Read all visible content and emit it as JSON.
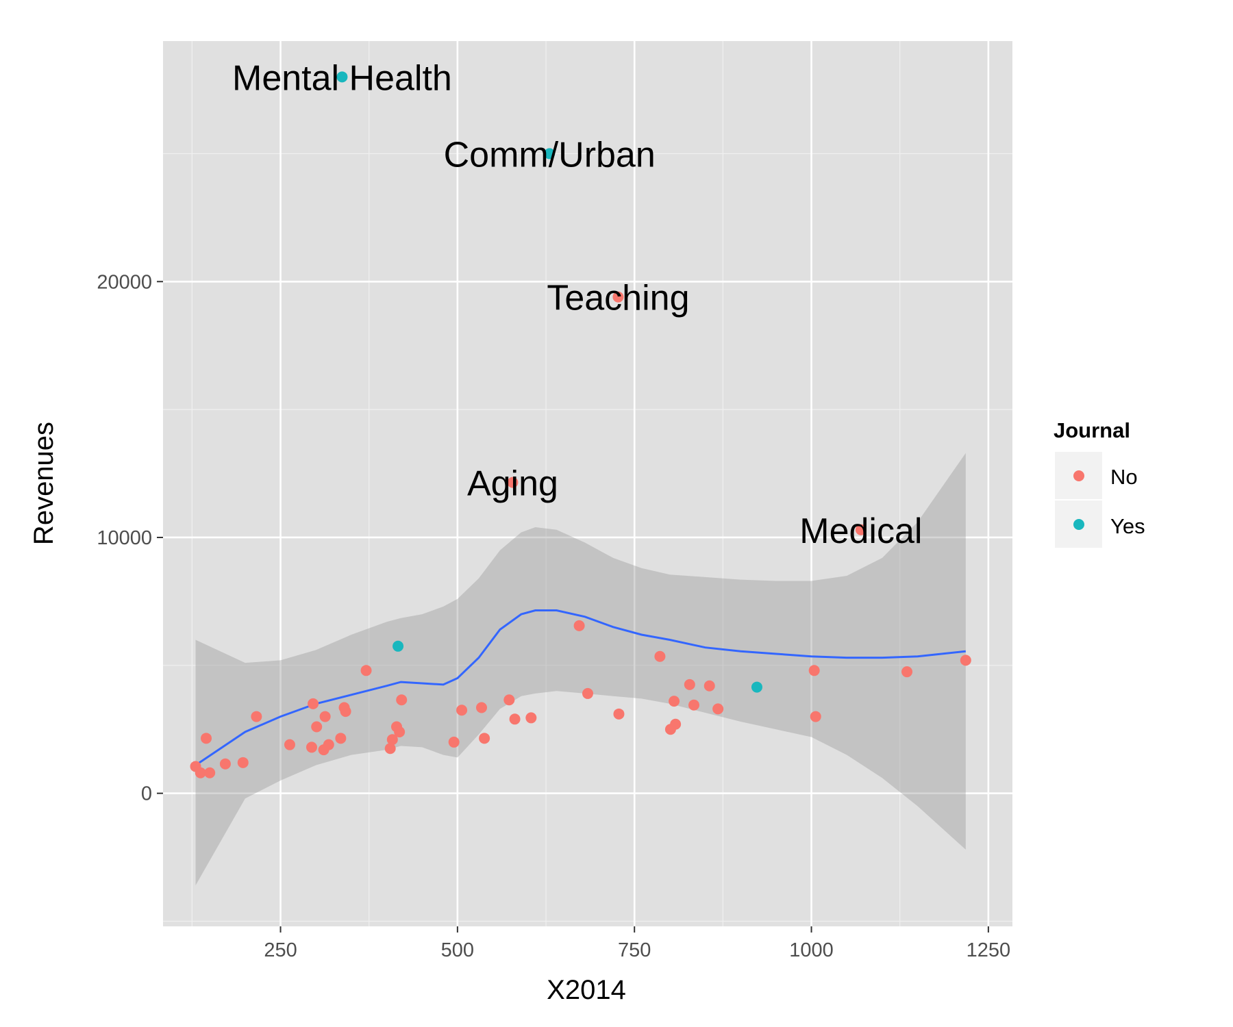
{
  "chart_data": {
    "type": "scatter",
    "xlabel": "X2014",
    "ylabel": "Revenues",
    "xlim": [
      84,
      1284
    ],
    "ylim": [
      -5200,
      29400
    ],
    "x_ticks": [
      250,
      500,
      750,
      1000,
      1250
    ],
    "x_tick_labels": [
      "250",
      "500",
      "750",
      "1000",
      "1250"
    ],
    "y_ticks": [
      0,
      10000,
      20000
    ],
    "y_tick_labels": [
      "0",
      "10000",
      "20000"
    ],
    "grid": true,
    "background_color": "#e0e0e0",
    "grid_color": "#ffffff",
    "legend": {
      "title": "Journal",
      "position": "right",
      "entries": [
        {
          "label": "No",
          "color": "#f8766d"
        },
        {
          "label": "Yes",
          "color": "#19b7be"
        }
      ]
    },
    "series": [
      {
        "name": "No",
        "color": "#f8766d",
        "points": [
          [
            130,
            1050
          ],
          [
            137,
            800
          ],
          [
            145,
            2150
          ],
          [
            150,
            800
          ],
          [
            172,
            1150
          ],
          [
            197,
            1200
          ],
          [
            216,
            3000
          ],
          [
            263,
            1900
          ],
          [
            294,
            1800
          ],
          [
            296,
            3500
          ],
          [
            301,
            2600
          ],
          [
            311,
            1700
          ],
          [
            313,
            3000
          ],
          [
            318,
            1900
          ],
          [
            335,
            2150
          ],
          [
            340,
            3350
          ],
          [
            342,
            3200
          ],
          [
            371,
            4800
          ],
          [
            405,
            1750
          ],
          [
            408,
            2100
          ],
          [
            414,
            2600
          ],
          [
            418,
            2400
          ],
          [
            421,
            3650
          ],
          [
            495,
            2000
          ],
          [
            506,
            3250
          ],
          [
            534,
            3350
          ],
          [
            538,
            2150
          ],
          [
            573,
            3650
          ],
          [
            578,
            12150
          ],
          [
            581,
            2900
          ],
          [
            604,
            2950
          ],
          [
            672,
            6550
          ],
          [
            684,
            3900
          ],
          [
            727,
            19400
          ],
          [
            728,
            3100
          ],
          [
            786,
            5350
          ],
          [
            801,
            2500
          ],
          [
            806,
            3600
          ],
          [
            808,
            2700
          ],
          [
            828,
            4250
          ],
          [
            834,
            3450
          ],
          [
            856,
            4200
          ],
          [
            868,
            3300
          ],
          [
            1004,
            4800
          ],
          [
            1006,
            3000
          ],
          [
            1070,
            10300
          ],
          [
            1135,
            4750
          ],
          [
            1218,
            5200
          ]
        ]
      },
      {
        "name": "Yes",
        "color": "#19b7be",
        "points": [
          [
            337,
            28000
          ],
          [
            416,
            5750
          ],
          [
            630,
            25000
          ],
          [
            923,
            4150
          ]
        ]
      }
    ],
    "smooth": {
      "color": "#3366ff",
      "x": [
        130,
        200,
        250,
        300,
        350,
        400,
        420,
        450,
        480,
        500,
        530,
        560,
        590,
        610,
        640,
        680,
        720,
        760,
        800,
        850,
        900,
        950,
        1000,
        1050,
        1100,
        1150,
        1218
      ],
      "y": [
        1100,
        2400,
        3000,
        3500,
        3850,
        4200,
        4350,
        4300,
        4250,
        4500,
        5300,
        6400,
        7000,
        7150,
        7150,
        6900,
        6500,
        6200,
        6000,
        5700,
        5550,
        5450,
        5350,
        5300,
        5300,
        5350,
        5550
      ],
      "upper": [
        6000,
        5100,
        5200,
        5600,
        6200,
        6700,
        6850,
        7000,
        7300,
        7600,
        8400,
        9500,
        10200,
        10400,
        10300,
        9800,
        9200,
        8800,
        8550,
        8450,
        8350,
        8300,
        8300,
        8500,
        9200,
        10600,
        13300
      ],
      "lower": [
        -3600,
        -200,
        500,
        1100,
        1500,
        1700,
        1850,
        1800,
        1500,
        1400,
        2300,
        3300,
        3800,
        3900,
        4000,
        3900,
        3800,
        3700,
        3500,
        3150,
        2800,
        2500,
        2200,
        1500,
        600,
        -500,
        -2200
      ]
    },
    "annotations": [
      {
        "text": "Mental Health",
        "x": 337,
        "y": 28000
      },
      {
        "text": "Comm/Urban",
        "x": 630,
        "y": 25000
      },
      {
        "text": "Teaching",
        "x": 727,
        "y": 19400
      },
      {
        "text": "Aging",
        "x": 578,
        "y": 12150
      },
      {
        "text": "Medical",
        "x": 1070,
        "y": 10300
      }
    ]
  }
}
